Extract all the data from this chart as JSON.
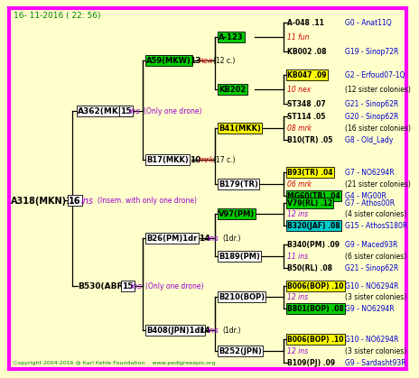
{
  "bg_color": "#ffffcc",
  "border_color": "#ff00ff",
  "title_text": "16- 11-2016 ( 22: 56)",
  "title_color": "#008000",
  "copyright_text": "Copyright 2004-2016 @ Karl Kehle Foundation    www.pedigreeapis.org",
  "copyright_color": "#008000",
  "line_color": "#000000",
  "proband_label": "A318(MKN)1(",
  "proband_num": "16",
  "proband_italic": "ins",
  "proband_note": "(Insem. with only one drone)",
  "gen2_top_label": "A362(MKN)",
  "gen2_top_num": "15",
  "gen2_top_italic": "ins",
  "gen2_top_note": "(Only one drone)",
  "gen2_bot_label": "B530(ABR)1(",
  "gen2_bot_num": "15",
  "gen2_bot_italic": "ins",
  "gen2_bot_note": "(Only one drone)",
  "gen3": [
    {
      "label": "A59(MKW)",
      "bc": "#00cc00",
      "num": "13",
      "it": "nex",
      "itc": "#cc0000",
      "note": "(12 c.)"
    },
    {
      "label": "B17(MKK)",
      "bc": "#ffffff",
      "num": "10",
      "it": "mrk",
      "itc": "#cc0000",
      "note": "(17 c.)"
    },
    {
      "label": "B26(PM)1dr",
      "bc": "#ffffff",
      "num": "14",
      "it": "ins",
      "itc": "#9900cc",
      "note": "(1dr.)"
    },
    {
      "label": "B408(JPN)1dr",
      "bc": "#ffffff",
      "num": "14",
      "it": "ins",
      "itc": "#9900cc",
      "note": "(1dr.)"
    }
  ],
  "gen4": [
    {
      "label": "A-123",
      "bc": "#00cc00"
    },
    {
      "label": "KB202",
      "bc": "#00cc00"
    },
    {
      "label": "B41(MKK)",
      "bc": "#ffff00"
    },
    {
      "label": "B179(TR)",
      "bc": "#ffffff"
    },
    {
      "label": "V97(PM)",
      "bc": "#00cc00"
    },
    {
      "label": "B189(PM)",
      "bc": "#ffffff"
    },
    {
      "label": "B210(BOP)",
      "bc": "#ffffff"
    },
    {
      "label": "B252(JPN)",
      "bc": "#ffffff"
    }
  ],
  "gen5": [
    {
      "label": "A-048 .11",
      "bc": null,
      "lc": "#000000",
      "right": "G0 - Anat11Q",
      "rc": "#0000cc",
      "italic": false
    },
    {
      "label": "11 fun",
      "bc": null,
      "lc": "#cc0000",
      "right": "",
      "rc": null,
      "italic": true
    },
    {
      "label": "KB002 .08",
      "bc": null,
      "lc": "#000000",
      "right": "G19 - Sinop72R",
      "rc": "#0000cc",
      "italic": false
    },
    {
      "label": "KB047 .09",
      "bc": "#ffff00",
      "lc": "#000000",
      "right": "G2 - Erfoud07-1Q",
      "rc": "#0000cc",
      "italic": false
    },
    {
      "label": "10 nex",
      "bc": null,
      "lc": "#cc0000",
      "right": "(12 sister colonies)",
      "rc": "#000000",
      "italic": true
    },
    {
      "label": "ST348 .07",
      "bc": null,
      "lc": "#000000",
      "right": "G21 - Sinop62R",
      "rc": "#0000cc",
      "italic": false
    },
    {
      "label": "ST114 .05",
      "bc": null,
      "lc": "#000000",
      "right": "G20 - Sinop62R",
      "rc": "#0000cc",
      "italic": false
    },
    {
      "label": "08 mrk",
      "bc": null,
      "lc": "#cc0000",
      "right": "(16 sister colonies)",
      "rc": "#000000",
      "italic": true
    },
    {
      "label": "B10(TR) .05",
      "bc": null,
      "lc": "#000000",
      "right": "G8 - Old_Lady",
      "rc": "#0000cc",
      "italic": false
    },
    {
      "label": "B93(TR) .04",
      "bc": "#ffff00",
      "lc": "#000000",
      "right": "G7 - NO6294R",
      "rc": "#0000cc",
      "italic": false
    },
    {
      "label": "06 mrk",
      "bc": null,
      "lc": "#cc0000",
      "right": "(21 sister colonies)",
      "rc": "#000000",
      "italic": true
    },
    {
      "label": "MG60(TR) .04",
      "bc": "#00cc00",
      "lc": "#000000",
      "right": "G4 - MG00R",
      "rc": "#0000cc",
      "italic": false
    },
    {
      "label": "V79(RL) .12",
      "bc": "#00cc00",
      "lc": "#000000",
      "right": "G7 - Athos00R",
      "rc": "#0000cc",
      "italic": false
    },
    {
      "label": "12 ins",
      "bc": null,
      "lc": "#9900cc",
      "right": "(4 sister colonies)",
      "rc": "#000000",
      "italic": true
    },
    {
      "label": "B320(JAF) .08",
      "bc": "#00cccc",
      "lc": "#000000",
      "right": "G15 - AthosS180R",
      "rc": "#0000cc",
      "italic": false
    },
    {
      "label": "B340(PM) .09",
      "bc": null,
      "lc": "#000000",
      "right": "G9 - Maced93R",
      "rc": "#0000cc",
      "italic": false
    },
    {
      "label": "11 ins",
      "bc": null,
      "lc": "#9900cc",
      "right": "(6 sister colonies)",
      "rc": "#000000",
      "italic": true
    },
    {
      "label": "B50(RL) .08",
      "bc": null,
      "lc": "#000000",
      "right": "G21 - Sinop62R",
      "rc": "#0000cc",
      "italic": false
    },
    {
      "label": "B006(BOP) .10",
      "bc": "#ffff00",
      "lc": "#000000",
      "right": "G10 - NO6294R",
      "rc": "#0000cc",
      "italic": false
    },
    {
      "label": "12 ins",
      "bc": null,
      "lc": "#9900cc",
      "right": "(3 sister colonies)",
      "rc": "#000000",
      "italic": true
    },
    {
      "label": "B801(BOP) .08",
      "bc": "#00cc00",
      "lc": "#000000",
      "right": "G9 - NO6294R",
      "rc": "#0000cc",
      "italic": false
    },
    {
      "label": "B006(BOP) .10",
      "bc": "#ffff00",
      "lc": "#000000",
      "right": "G10 - NO6294R",
      "rc": "#0000cc",
      "italic": false
    },
    {
      "label": "12 ins",
      "bc": null,
      "lc": "#9900cc",
      "right": "(3 sister colonies)",
      "rc": "#000000",
      "italic": true
    },
    {
      "label": "B109(PJ) .09",
      "bc": null,
      "lc": "#000000",
      "right": "G9 - Sardasht93R",
      "rc": "#0000cc",
      "italic": false
    }
  ]
}
